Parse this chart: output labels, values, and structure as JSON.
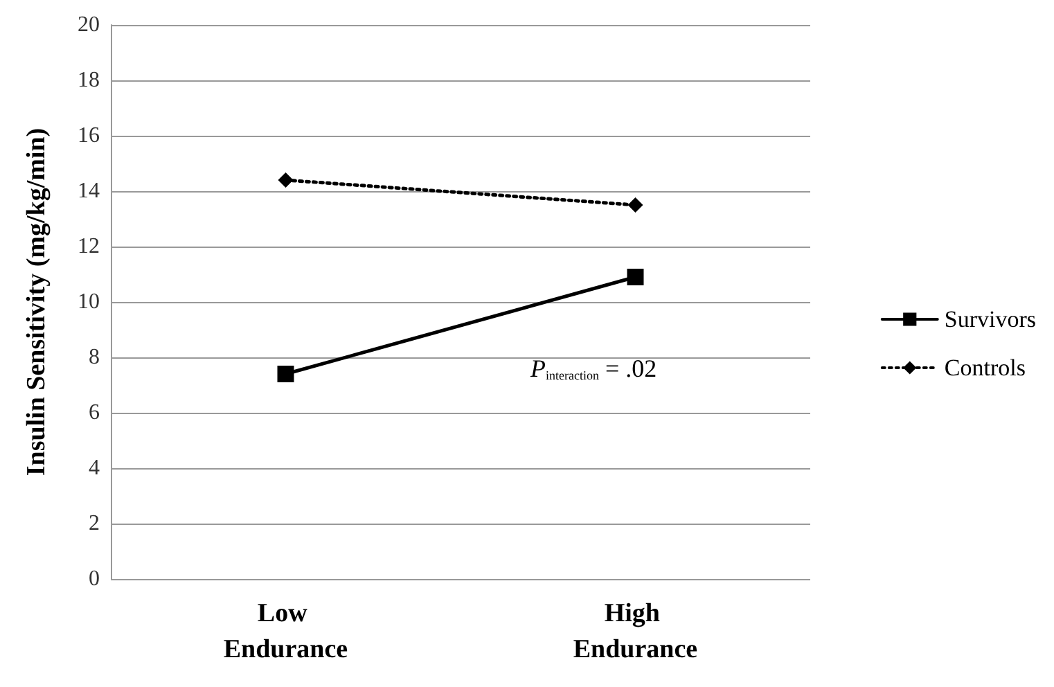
{
  "chart_data": {
    "type": "line",
    "ylabel": "Insulin Sensitivity (mg/kg/min)",
    "categories": [
      "Low Endurance",
      "High Endurance"
    ],
    "series": [
      {
        "name": "Survivors",
        "color": "#000000",
        "values": [
          7.4,
          10.9
        ],
        "marker": "square",
        "line_style": "solid"
      },
      {
        "name": "Controls",
        "color": "#000000",
        "values": [
          14.4,
          13.5
        ],
        "marker": "diamond",
        "line_style": "dotted"
      }
    ],
    "ylim": [
      0,
      20
    ],
    "yticks": [
      0,
      2,
      4,
      6,
      8,
      10,
      12,
      14,
      16,
      18,
      20
    ],
    "grid": "y",
    "legend": "right",
    "annotations": [
      "P$_{interaction}$ = .02"
    ]
  }
}
